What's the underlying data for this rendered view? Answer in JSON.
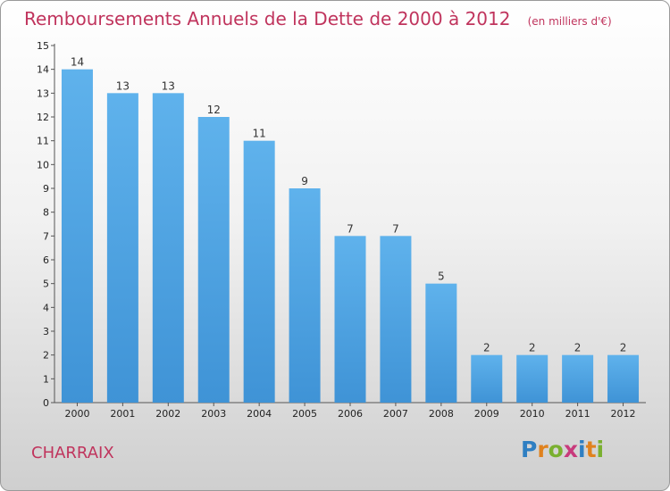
{
  "chart_data": {
    "type": "bar",
    "title": "Remboursements Annuels de la Dette de 2000 à 2012",
    "unit_label": "(en milliers d'€)",
    "categories": [
      "2000",
      "2001",
      "2002",
      "2003",
      "2004",
      "2005",
      "2006",
      "2007",
      "2008",
      "2009",
      "2010",
      "2011",
      "2012"
    ],
    "values": [
      14,
      13,
      13,
      12,
      11,
      9,
      7,
      7,
      5,
      2,
      2,
      2,
      2
    ],
    "ylim": [
      0,
      15
    ],
    "yticks": [
      0,
      1,
      2,
      3,
      4,
      5,
      6,
      7,
      8,
      9,
      10,
      11,
      12,
      13,
      14,
      15
    ],
    "xlabel": "",
    "ylabel": "",
    "grid": false,
    "bar_color": "#3f93d6",
    "title_color": "#c0345d"
  },
  "footer": {
    "commune": "CHARRAIX",
    "logo_letters": [
      "P",
      "r",
      "o",
      "x",
      "i",
      "t",
      "i"
    ],
    "logo_colors": [
      "#2f7fc2",
      "#e0821e",
      "#7ab030",
      "#c83a7c",
      "#2f7fc2",
      "#e0821e",
      "#7ab030"
    ]
  }
}
